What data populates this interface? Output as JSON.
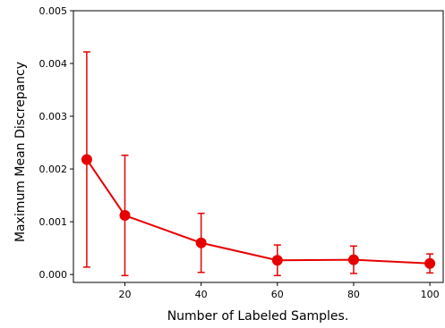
{
  "chart_data": {
    "type": "line",
    "title": "",
    "xlabel": "Number of Labeled Samples.",
    "ylabel": "Maximum Mean Discrepancy",
    "xlim": [
      6.5,
      103.5
    ],
    "ylim": [
      -0.00015,
      0.005
    ],
    "xticks": [
      20,
      40,
      60,
      80,
      100
    ],
    "xtick_labels": [
      "20",
      "40",
      "60",
      "80",
      "100"
    ],
    "yticks": [
      0.0,
      0.001,
      0.002,
      0.003,
      0.004,
      0.005
    ],
    "ytick_labels": [
      "0.000",
      "0.001",
      "0.002",
      "0.003",
      "0.004",
      "0.005"
    ],
    "grid": false,
    "series": [
      {
        "color": "#e60000",
        "x": [
          10,
          20,
          40,
          60,
          80,
          100
        ],
        "y": [
          0.00218,
          0.00112,
          0.0006,
          0.00027,
          0.00028,
          0.00021
        ],
        "error": [
          0.00204,
          0.00114,
          0.00056,
          0.00029,
          0.00026,
          0.00018
        ]
      }
    ]
  }
}
